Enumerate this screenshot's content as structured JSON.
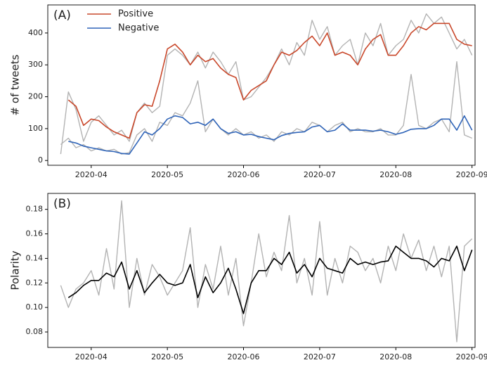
{
  "chart_data": [
    {
      "type": "line",
      "annotation": "(A)",
      "ylabel": "# of tweets",
      "legend": "upper left",
      "xlim": [
        3.43,
        9.04
      ],
      "xticks": [
        {
          "value": 4,
          "label": "2020-04"
        },
        {
          "value": 5,
          "label": "2020-05"
        },
        {
          "value": 6,
          "label": "2020-06"
        },
        {
          "value": 7,
          "label": "2020-07"
        },
        {
          "value": 8,
          "label": "2020-08"
        },
        {
          "value": 9,
          "label": "2020-09"
        }
      ],
      "ylim": [
        -15,
        488
      ],
      "yticks": [
        0,
        100,
        200,
        300,
        400
      ],
      "x": [
        3.6,
        3.7,
        3.8,
        3.9,
        4.0,
        4.1,
        4.2,
        4.3,
        4.4,
        4.5,
        4.6,
        4.7,
        4.8,
        4.9,
        5.0,
        5.1,
        5.2,
        5.3,
        5.4,
        5.5,
        5.6,
        5.7,
        5.8,
        5.9,
        6.0,
        6.1,
        6.2,
        6.3,
        6.4,
        6.5,
        6.6,
        6.7,
        6.8,
        6.9,
        7.0,
        7.1,
        7.2,
        7.3,
        7.4,
        7.5,
        7.6,
        7.7,
        7.8,
        7.9,
        8.0,
        8.1,
        8.2,
        8.3,
        8.4,
        8.5,
        8.6,
        8.7,
        8.8,
        8.9,
        9.0
      ],
      "series": [
        {
          "color": "#b3b3b3",
          "values": [
            20,
            215,
            160,
            60,
            120,
            140,
            110,
            80,
            95,
            60,
            150,
            180,
            150,
            170,
            330,
            350,
            330,
            300,
            340,
            290,
            340,
            310,
            270,
            310,
            190,
            200,
            230,
            260,
            300,
            350,
            300,
            370,
            330,
            440,
            380,
            420,
            330,
            360,
            380,
            300,
            400,
            360,
            430,
            330,
            360,
            380,
            440,
            400,
            460,
            430,
            450,
            400,
            350,
            380,
            330
          ]
        },
        {
          "color": "#b3b3b3",
          "values": [
            50,
            70,
            40,
            50,
            30,
            40,
            30,
            35,
            20,
            25,
            80,
            100,
            60,
            120,
            110,
            150,
            140,
            180,
            250,
            90,
            130,
            100,
            80,
            100,
            80,
            90,
            70,
            80,
            60,
            90,
            80,
            100,
            90,
            120,
            110,
            90,
            110,
            120,
            90,
            100,
            90,
            90,
            100,
            80,
            80,
            110,
            270,
            110,
            100,
            120,
            130,
            90,
            310,
            80,
            70
          ]
        },
        {
          "name": "Positive",
          "color": "#c9482b",
          "values": [
            null,
            190,
            170,
            110,
            130,
            125,
            105,
            90,
            80,
            70,
            150,
            175,
            170,
            250,
            350,
            365,
            340,
            300,
            330,
            310,
            320,
            290,
            270,
            260,
            190,
            220,
            235,
            250,
            300,
            340,
            330,
            345,
            370,
            390,
            360,
            400,
            330,
            340,
            330,
            300,
            350,
            380,
            395,
            330,
            330,
            360,
            400,
            420,
            410,
            430,
            430,
            430,
            380,
            365,
            360
          ]
        },
        {
          "name": "Negative",
          "color": "#2f64b8",
          "values": [
            null,
            60,
            55,
            45,
            40,
            35,
            30,
            28,
            22,
            20,
            55,
            90,
            80,
            100,
            130,
            140,
            135,
            115,
            120,
            110,
            130,
            100,
            85,
            90,
            80,
            82,
            75,
            70,
            65,
            78,
            85,
            88,
            90,
            105,
            110,
            90,
            95,
            115,
            95,
            95,
            95,
            92,
            95,
            90,
            82,
            88,
            98,
            100,
            100,
            110,
            130,
            130,
            95,
            140,
            95
          ]
        }
      ]
    },
    {
      "type": "line",
      "annotation": "(B)",
      "ylabel": "Polarity",
      "xlim": [
        3.43,
        9.04
      ],
      "xticks": [
        {
          "value": 4,
          "label": "2020-04"
        },
        {
          "value": 5,
          "label": "2020-05"
        },
        {
          "value": 6,
          "label": "2020-06"
        },
        {
          "value": 7,
          "label": "2020-07"
        },
        {
          "value": 8,
          "label": "2020-08"
        },
        {
          "value": 9,
          "label": "2020-09"
        }
      ],
      "ylim": [
        0.0674,
        0.193
      ],
      "yticks": [
        0.08,
        {
          "value": 0.1,
          "label": "0.10"
        },
        0.12,
        0.14,
        0.16,
        0.18
      ],
      "x": [
        3.6,
        3.7,
        3.8,
        3.9,
        4.0,
        4.1,
        4.2,
        4.3,
        4.4,
        4.5,
        4.6,
        4.7,
        4.8,
        4.9,
        5.0,
        5.1,
        5.2,
        5.3,
        5.4,
        5.5,
        5.6,
        5.7,
        5.8,
        5.9,
        6.0,
        6.1,
        6.2,
        6.3,
        6.4,
        6.5,
        6.6,
        6.7,
        6.8,
        6.9,
        7.0,
        7.1,
        7.2,
        7.3,
        7.4,
        7.5,
        7.6,
        7.7,
        7.8,
        7.9,
        8.0,
        8.1,
        8.2,
        8.3,
        8.4,
        8.5,
        8.6,
        8.7,
        8.8,
        8.9,
        9.0
      ],
      "series": [
        {
          "color": "#b3b3b3",
          "values": [
            0.118,
            0.1,
            0.115,
            0.12,
            0.13,
            0.11,
            0.148,
            0.115,
            0.187,
            0.1,
            0.14,
            0.11,
            0.135,
            0.125,
            0.11,
            0.12,
            0.13,
            0.165,
            0.1,
            0.135,
            0.115,
            0.15,
            0.11,
            0.14,
            0.085,
            0.12,
            0.16,
            0.125,
            0.145,
            0.13,
            0.175,
            0.12,
            0.14,
            0.11,
            0.17,
            0.11,
            0.14,
            0.12,
            0.15,
            0.145,
            0.13,
            0.14,
            0.12,
            0.15,
            0.13,
            0.16,
            0.14,
            0.155,
            0.13,
            0.15,
            0.125,
            0.15,
            0.072,
            0.15,
            0.156
          ]
        },
        {
          "color": "#000000",
          "values": [
            null,
            0.108,
            0.112,
            0.118,
            0.122,
            0.122,
            0.128,
            0.125,
            0.137,
            0.115,
            0.13,
            0.112,
            0.12,
            0.127,
            0.12,
            0.118,
            0.12,
            0.135,
            0.108,
            0.125,
            0.112,
            0.12,
            0.132,
            0.115,
            0.095,
            0.12,
            0.13,
            0.13,
            0.14,
            0.135,
            0.145,
            0.128,
            0.135,
            0.125,
            0.14,
            0.132,
            0.13,
            0.128,
            0.14,
            0.135,
            0.137,
            0.135,
            0.137,
            0.138,
            0.15,
            0.145,
            0.14,
            0.14,
            0.138,
            0.133,
            0.14,
            0.138,
            0.15,
            0.13,
            0.147
          ]
        }
      ]
    }
  ]
}
